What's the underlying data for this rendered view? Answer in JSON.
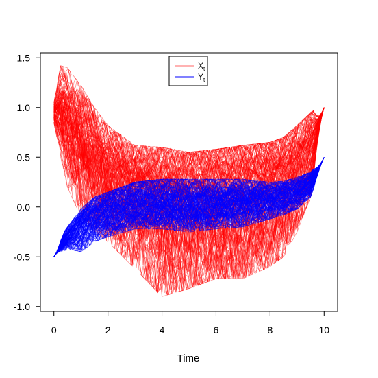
{
  "chart_data": {
    "type": "line",
    "title": "",
    "xlabel": "Time",
    "ylabel": "",
    "xlim": [
      -0.5,
      10.5
    ],
    "ylim": [
      -1.05,
      1.55
    ],
    "xticks": [
      0,
      2,
      4,
      6,
      8,
      10
    ],
    "xtick_labels": [
      "0",
      "2",
      "4",
      "6",
      "8",
      "10"
    ],
    "yticks": [
      -1.0,
      -0.5,
      0.0,
      0.5,
      1.0,
      1.5
    ],
    "ytick_labels": [
      "-1.0",
      "-0.5",
      "0.0",
      "0.5",
      "1.0",
      "1.5"
    ],
    "grid": false,
    "legend": {
      "placement": "top-center",
      "entries": [
        {
          "name": "X",
          "sub": "t",
          "color": "#ff0000"
        },
        {
          "name": "Y",
          "sub": "t",
          "color": "#0000ff"
        }
      ]
    },
    "series": [
      {
        "color": "#ff0000",
        "x": [
          0,
          0.25,
          0.5,
          1,
          1.5,
          2,
          3,
          4,
          5,
          6,
          7,
          8,
          8.5,
          9,
          9.5,
          10
        ],
        "mean": [
          0.95,
          1.0,
          0.92,
          0.72,
          0.55,
          0.38,
          0.2,
          0.12,
          0.1,
          0.12,
          0.15,
          0.22,
          0.28,
          0.4,
          0.6,
          1.0
        ],
        "upper": [
          1.05,
          1.42,
          1.4,
          1.22,
          1.0,
          0.82,
          0.62,
          0.6,
          0.55,
          0.58,
          0.62,
          0.65,
          0.7,
          0.82,
          0.95,
          1.04
        ],
        "lower": [
          0.85,
          0.5,
          0.2,
          -0.1,
          -0.25,
          -0.35,
          -0.62,
          -0.9,
          -0.82,
          -0.72,
          -0.72,
          -0.6,
          -0.5,
          -0.25,
          0.1,
          0.95
        ]
      },
      {
        "color": "#0000ff",
        "x": [
          0,
          0.25,
          0.5,
          1,
          1.5,
          2,
          3,
          4,
          5,
          6,
          7,
          8,
          8.5,
          9,
          9.5,
          10
        ],
        "mean": [
          -0.5,
          -0.4,
          -0.32,
          -0.18,
          -0.1,
          -0.05,
          0.0,
          0.02,
          0.02,
          0.03,
          0.05,
          0.08,
          0.1,
          0.14,
          0.22,
          0.5
        ],
        "upper": [
          -0.5,
          -0.3,
          -0.2,
          -0.02,
          0.1,
          0.15,
          0.25,
          0.28,
          0.28,
          0.28,
          0.28,
          0.25,
          0.26,
          0.3,
          0.35,
          0.5
        ],
        "lower": [
          -0.5,
          -0.48,
          -0.42,
          -0.45,
          -0.35,
          -0.3,
          -0.22,
          -0.22,
          -0.25,
          -0.22,
          -0.2,
          -0.12,
          -0.08,
          -0.02,
          0.1,
          0.48
        ]
      }
    ]
  }
}
